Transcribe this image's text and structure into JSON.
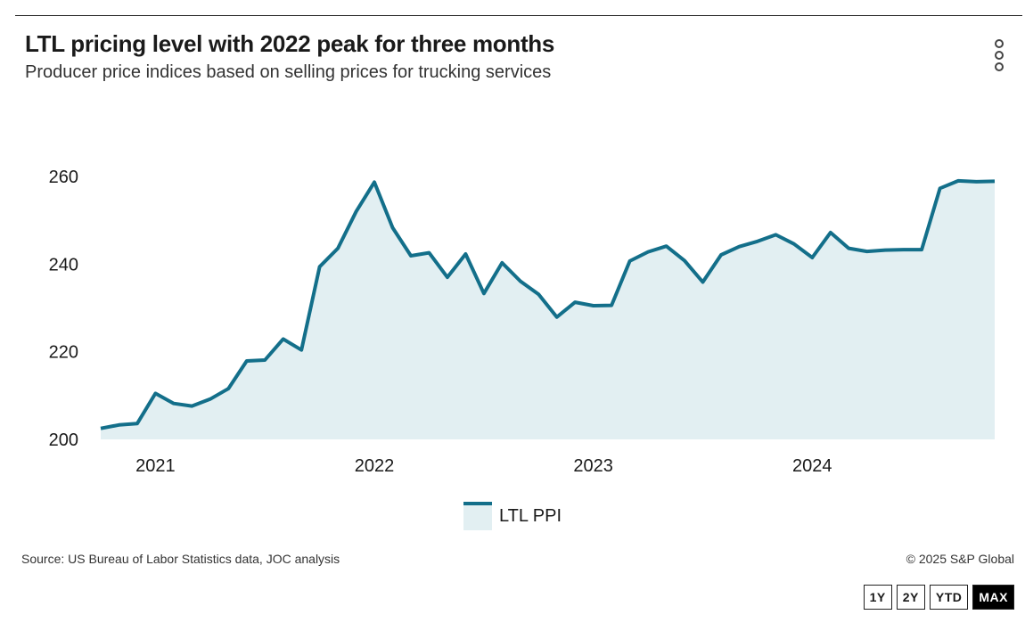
{
  "header": {
    "title": "LTL pricing level with 2022 peak for three months",
    "subtitle": "Producer price indices based on selling prices for trucking services"
  },
  "chart_data": {
    "type": "area",
    "title": "LTL pricing level with 2022 peak for three months",
    "subtitle": "Producer price indices based on selling prices for trucking services",
    "xlabel": "",
    "ylabel": "",
    "x_start": "2020-10",
    "x_ticks": [
      "2021",
      "2022",
      "2023",
      "2024"
    ],
    "y_ticks": [
      200,
      220,
      240,
      260
    ],
    "ylim": [
      200,
      262
    ],
    "grid": false,
    "legend_position": "bottom-center",
    "series": [
      {
        "name": "LTL PPI",
        "color": "#136f8a",
        "fill": "#e2eff2",
        "values": [
          202.5,
          203.3,
          203.6,
          210.5,
          208.2,
          207.6,
          209.2,
          211.6,
          217.9,
          218.1,
          222.9,
          220.4,
          239.4,
          243.6,
          252.0,
          258.7,
          248.3,
          241.9,
          242.6,
          237.0,
          242.3,
          233.3,
          240.3,
          236.1,
          233.1,
          227.9,
          231.3,
          230.5,
          230.6,
          240.7,
          242.8,
          244.1,
          240.8,
          235.9,
          242.1,
          244.0,
          245.2,
          246.7,
          244.6,
          241.5,
          247.2,
          243.6,
          242.9,
          243.2,
          243.3,
          243.3,
          257.3,
          259.0,
          258.8,
          258.9
        ]
      }
    ]
  },
  "legend": {
    "label": "LTL PPI"
  },
  "footer": {
    "source": "Source: US Bureau of Labor Statistics data, JOC analysis",
    "copyright": "© 2025 S&P Global"
  },
  "range_buttons": [
    {
      "label": "1Y",
      "active": false
    },
    {
      "label": "2Y",
      "active": false
    },
    {
      "label": "YTD",
      "active": false
    },
    {
      "label": "MAX",
      "active": true
    }
  ]
}
